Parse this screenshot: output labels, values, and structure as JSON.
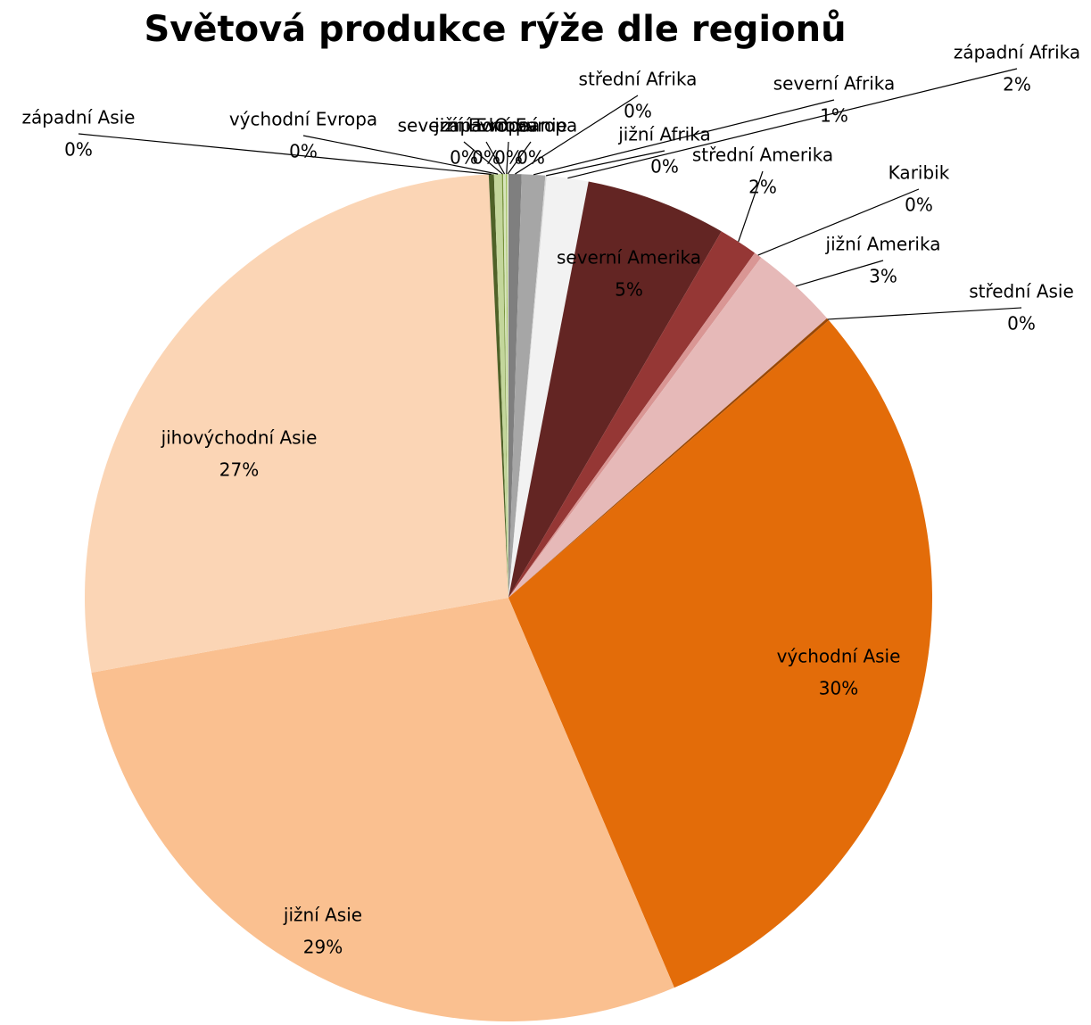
{
  "chart_data": {
    "type": "pie",
    "title": "Světová produkce rýže dle regionů",
    "categories": [
      "střední Afrika",
      "severní Afrika",
      "jižní Afrika",
      "západní Afrika",
      "severní Amerika",
      "střední Amerika",
      "Karibik",
      "jižní Amerika",
      "střední Asie",
      "východní Asie",
      "jižní Asie",
      "jihovýchodní Asie",
      "západní Asie",
      "východní Evropa",
      "severní Evropa",
      "jižní Evropa",
      "západní Evropa",
      "Oceánie"
    ],
    "values": [
      0.5,
      0.9,
      0.05,
      1.6,
      5.4,
      1.5,
      0.3,
      3.4,
      0.1,
      30.2,
      28.8,
      27.3,
      0.2,
      0.3,
      0.05,
      0.1,
      0.05,
      0.05
    ],
    "value_labels": [
      "0%",
      "1%",
      "0%",
      "2%",
      "5%",
      "2%",
      "0%",
      "3%",
      "0%",
      "30%",
      "29%",
      "27%",
      "0%",
      "0%",
      "0%",
      "0%",
      "0%",
      "0%"
    ],
    "colors": [
      "#7f7f7f",
      "#a6a6a6",
      "#d9d9d9",
      "#f2f2f2",
      "#632523",
      "#953735",
      "#d99694",
      "#e6b9b8",
      "#984807",
      "#e36c09",
      "#fac090",
      "#fbd5b5",
      "#4f6228",
      "#c3d69b",
      "#77933c",
      "#d7e4bd",
      "#9bbb59",
      "#ebf1de"
    ]
  }
}
